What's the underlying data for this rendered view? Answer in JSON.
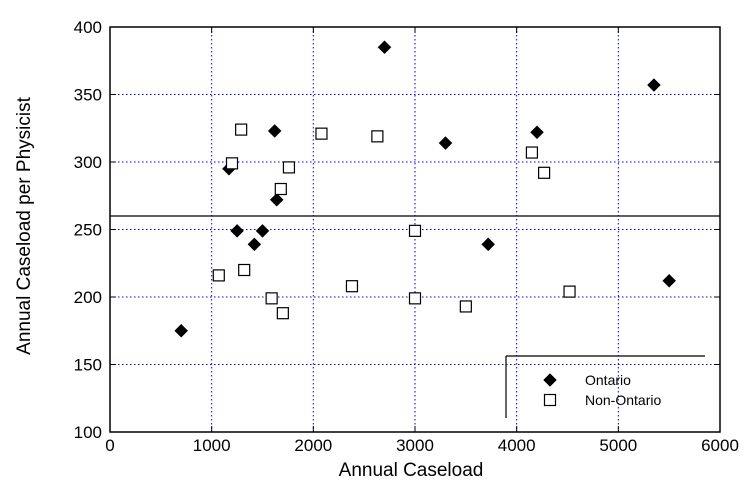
{
  "chart_data": {
    "type": "scatter",
    "title": "",
    "xlabel": "Annual Caseload",
    "ylabel": "Annual Caseload per Physicist",
    "xlim": [
      0,
      6000
    ],
    "ylim": [
      100,
      400
    ],
    "x_ticks": [
      "0",
      "1000",
      "2000",
      "3000",
      "4000",
      "5000",
      "6000"
    ],
    "y_ticks": [
      "100",
      "150",
      "200",
      "250",
      "300",
      "350",
      "400"
    ],
    "grid": true,
    "reference_line_y": 260,
    "legend_position": "bottom-right",
    "series": [
      {
        "name": "Ontario",
        "marker": "filled-diamond",
        "color": "#000000",
        "points": [
          {
            "x": 700,
            "y": 175
          },
          {
            "x": 1170,
            "y": 295
          },
          {
            "x": 1250,
            "y": 249
          },
          {
            "x": 1420,
            "y": 239
          },
          {
            "x": 1500,
            "y": 249
          },
          {
            "x": 1620,
            "y": 323
          },
          {
            "x": 1640,
            "y": 272
          },
          {
            "x": 2700,
            "y": 385
          },
          {
            "x": 3300,
            "y": 314
          },
          {
            "x": 3720,
            "y": 239
          },
          {
            "x": 4200,
            "y": 322
          },
          {
            "x": 5350,
            "y": 357
          },
          {
            "x": 5500,
            "y": 212
          }
        ]
      },
      {
        "name": "Non-Ontario",
        "marker": "open-square",
        "color": "#000000",
        "points": [
          {
            "x": 1070,
            "y": 216
          },
          {
            "x": 1200,
            "y": 299
          },
          {
            "x": 1290,
            "y": 324
          },
          {
            "x": 1320,
            "y": 220
          },
          {
            "x": 1590,
            "y": 199
          },
          {
            "x": 1680,
            "y": 280
          },
          {
            "x": 1700,
            "y": 188
          },
          {
            "x": 1760,
            "y": 296
          },
          {
            "x": 2080,
            "y": 321
          },
          {
            "x": 2380,
            "y": 208
          },
          {
            "x": 2630,
            "y": 319
          },
          {
            "x": 3000,
            "y": 249
          },
          {
            "x": 3000,
            "y": 199
          },
          {
            "x": 3500,
            "y": 193
          },
          {
            "x": 4150,
            "y": 307
          },
          {
            "x": 4270,
            "y": 292
          },
          {
            "x": 4520,
            "y": 204
          }
        ]
      }
    ]
  }
}
